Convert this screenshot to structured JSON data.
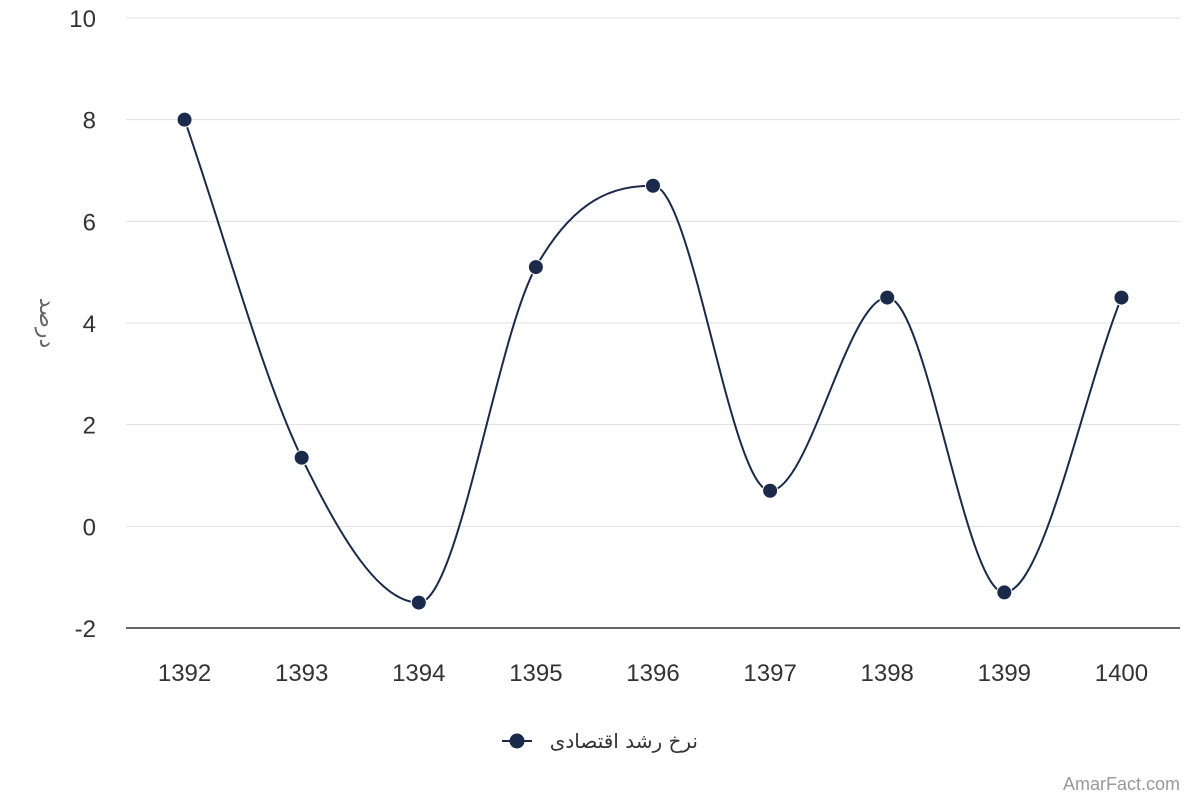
{
  "chart_data": {
    "type": "line",
    "categories": [
      "1392",
      "1393",
      "1394",
      "1395",
      "1396",
      "1397",
      "1398",
      "1399",
      "1400"
    ],
    "series": [
      {
        "name": "نرخ رشد اقتصادی",
        "values": [
          8.0,
          1.35,
          -1.5,
          5.1,
          6.7,
          0.7,
          4.5,
          -1.3,
          4.5
        ],
        "color": "#1b2a4a"
      }
    ],
    "ylabel": "درصد",
    "ylim": [
      -2,
      10
    ],
    "yticks": [
      -2,
      0,
      2,
      4,
      6,
      8,
      10
    ],
    "grid": true,
    "legend_position": "bottom-center",
    "smooth": true
  },
  "credit": "AmarFact.com"
}
